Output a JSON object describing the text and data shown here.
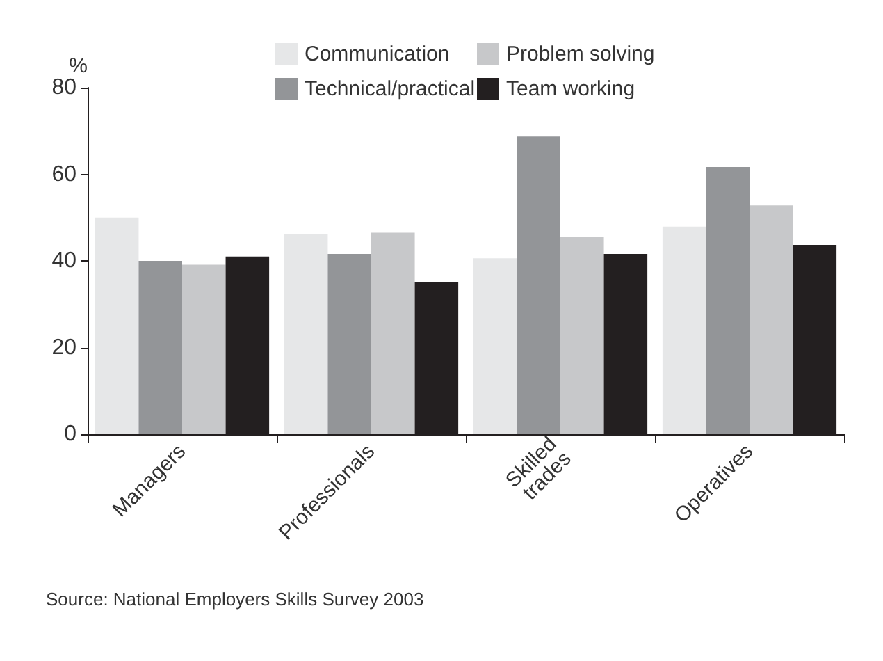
{
  "chart_data": {
    "type": "bar",
    "ylabel": "%",
    "categories": [
      "Managers",
      "Professionals",
      "Skilled\ntrades",
      "Operatives"
    ],
    "series": [
      {
        "name": "Communication",
        "color": "#e6e7e8",
        "values": [
          50,
          46.1,
          40.6,
          47.9
        ]
      },
      {
        "name": "Technical/practical",
        "color": "#939598",
        "values": [
          40,
          41.6,
          68.7,
          61.7
        ]
      },
      {
        "name": "Problem solving",
        "color": "#c7c8ca",
        "values": [
          39.1,
          46.5,
          45.5,
          52.8
        ]
      },
      {
        "name": "Team working",
        "color": "#231f20",
        "values": [
          41,
          35.2,
          41.6,
          43.7
        ]
      }
    ],
    "ylim": [
      0,
      80
    ],
    "yticks": [
      0,
      20,
      40,
      60,
      80
    ],
    "grid": false,
    "legend": "top",
    "annotations": [
      "Source: National Employers Skills Survey 2003"
    ]
  }
}
